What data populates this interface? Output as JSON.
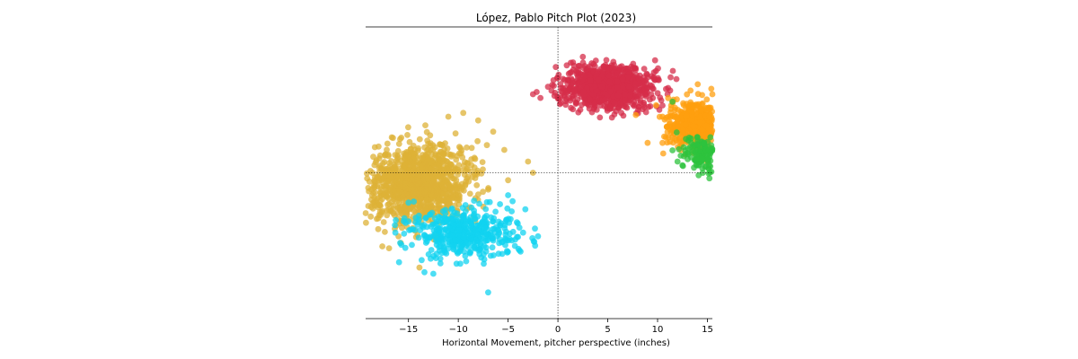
{
  "chart_data": {
    "type": "scatter",
    "title": "López, Pablo Pitch Plot (2023)",
    "xlabel": "Horizontal Movement, pitcher perspective (inches)",
    "ylabel": "",
    "xlim": [
      -19.3,
      15.5
    ],
    "ylim": [
      -19.5,
      19.5
    ],
    "x_ticks": [
      -15,
      -10,
      -5,
      0,
      5,
      10,
      15
    ],
    "x_tick_labels": [
      "−15",
      "−10",
      "−5",
      "0",
      "5",
      "10",
      "15"
    ],
    "y_tick_labels": [],
    "grid": false,
    "legend": "none",
    "reference_lines": {
      "x": 0,
      "y": 0
    },
    "series": [
      {
        "color": "#d62d4a",
        "center": [
          5.0,
          11.5
        ],
        "spread": [
          2.3,
          1.4
        ],
        "count": 900,
        "values": [
          [
            2.5,
            15.5
          ],
          [
            -2.5,
            10.5
          ],
          [
            -1.0,
            11.5
          ],
          [
            1.0,
            11.0
          ],
          [
            1.5,
            8.5
          ],
          [
            8.5,
            8.5
          ],
          [
            11.0,
            10.5
          ],
          [
            10.5,
            9.0
          ],
          [
            3.0,
            14.0
          ],
          [
            7.5,
            14.0
          ]
        ]
      },
      {
        "color": "#ff9f0f",
        "center": [
          14.0,
          6.5
        ],
        "spread": [
          1.5,
          1.6
        ],
        "count": 550,
        "values": [
          [
            9.0,
            4.0
          ],
          [
            10.5,
            4.0
          ],
          [
            11.5,
            9.5
          ],
          [
            15.5,
            10.5
          ],
          [
            10.5,
            7.5
          ],
          [
            12.0,
            5.0
          ]
        ]
      },
      {
        "color": "#2dc33e",
        "center": [
          14.8,
          2.5
        ],
        "spread": [
          1.2,
          1.2
        ],
        "count": 180,
        "values": [
          [
            11.5,
            3.0
          ],
          [
            12.0,
            1.5
          ],
          [
            12.5,
            1.0
          ],
          [
            14.0,
            1.0
          ],
          [
            11.5,
            9.5
          ]
        ]
      },
      {
        "color": "#ddb137",
        "center": [
          -14.0,
          -1.5
        ],
        "spread": [
          2.6,
          2.6
        ],
        "count": 1100,
        "values": [
          [
            -18.0,
            3.5
          ],
          [
            -11.0,
            7.5
          ],
          [
            -9.5,
            8.0
          ],
          [
            -8.0,
            7.0
          ],
          [
            -6.5,
            5.5
          ],
          [
            -3.0,
            1.5
          ],
          [
            -2.5,
            0.0
          ],
          [
            -5.0,
            -1.0
          ],
          [
            -16.0,
            -8.5
          ],
          [
            -18.5,
            -2.0
          ]
        ]
      },
      {
        "color": "#12d3f0",
        "center": [
          -9.5,
          -8.0
        ],
        "spread": [
          2.8,
          1.7
        ],
        "count": 450,
        "values": [
          [
            -15.0,
            -6.5
          ],
          [
            -12.5,
            -13.5
          ],
          [
            -2.0,
            -8.5
          ],
          [
            -3.5,
            -8.0
          ],
          [
            -7.0,
            -16.0
          ],
          [
            -5.0,
            -3.0
          ],
          [
            -15.0,
            -4.0
          ]
        ]
      }
    ]
  }
}
